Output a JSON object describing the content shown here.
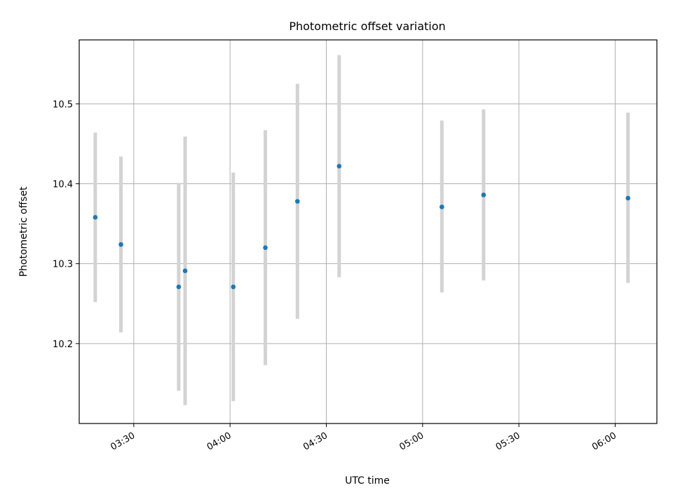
{
  "chart_data": {
    "type": "scatter",
    "title": "Photometric offset variation",
    "xlabel": "UTC time",
    "ylabel": "Photometric offset",
    "x_unit": "time",
    "xlim": [
      "03:13",
      "06:13"
    ],
    "ylim": [
      10.1,
      10.58
    ],
    "x_ticks": [
      "03:30",
      "04:00",
      "04:30",
      "05:00",
      "05:30",
      "06:00"
    ],
    "y_ticks": [
      "10.2",
      "10.3",
      "10.4",
      "10.5"
    ],
    "grid": true,
    "series": [
      {
        "points": [
          {
            "x": "03:18",
            "y": 10.358,
            "err_low": 10.252,
            "err_high": 10.464
          },
          {
            "x": "03:26",
            "y": 10.324,
            "err_low": 10.214,
            "err_high": 10.434
          },
          {
            "x": "03:44",
            "y": 10.271,
            "err_low": 10.141,
            "err_high": 10.401
          },
          {
            "x": "03:46",
            "y": 10.291,
            "err_low": 10.123,
            "err_high": 10.459
          },
          {
            "x": "04:01",
            "y": 10.271,
            "err_low": 10.128,
            "err_high": 10.414
          },
          {
            "x": "04:11",
            "y": 10.32,
            "err_low": 10.173,
            "err_high": 10.467
          },
          {
            "x": "04:21",
            "y": 10.378,
            "err_low": 10.231,
            "err_high": 10.525
          },
          {
            "x": "04:34",
            "y": 10.422,
            "err_low": 10.283,
            "err_high": 10.561
          },
          {
            "x": "05:06",
            "y": 10.371,
            "err_low": 10.264,
            "err_high": 10.479
          },
          {
            "x": "05:19",
            "y": 10.386,
            "err_low": 10.279,
            "err_high": 10.493
          },
          {
            "x": "06:04",
            "y": 10.382,
            "err_low": 10.276,
            "err_high": 10.489
          }
        ],
        "point_color": "#1f77b4",
        "errorbar_color": "#d3d3d3"
      }
    ]
  }
}
